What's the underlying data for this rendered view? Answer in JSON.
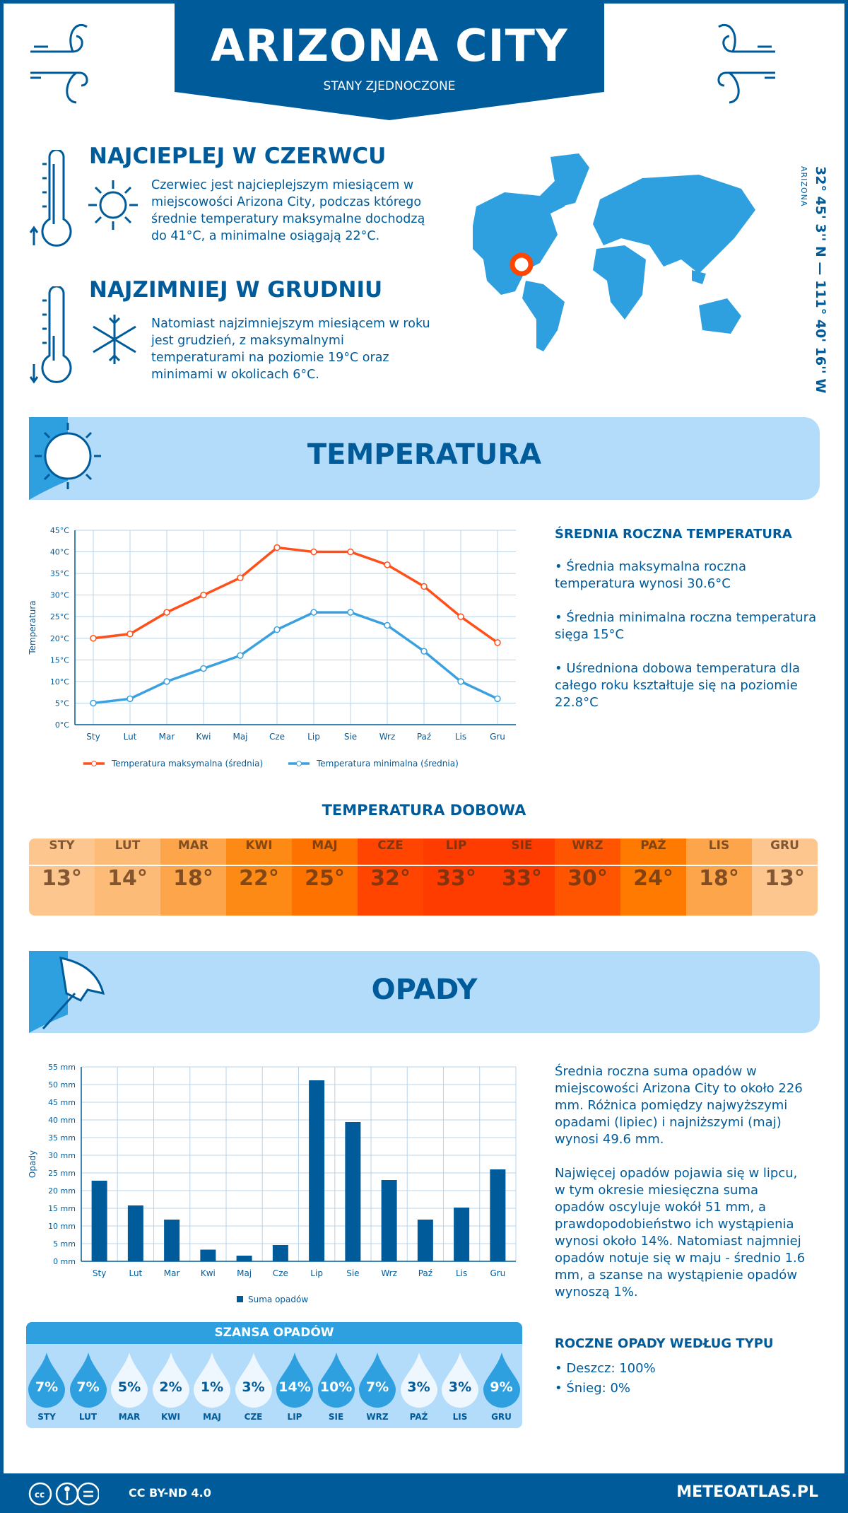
{
  "header": {
    "title": "ARIZONA CITY",
    "subtitle": "STANY ZJEDNOCZONE"
  },
  "hottest": {
    "title": "NAJCIEPLEJ W CZERWCU",
    "text": "Czerwiec jest najcieplejszym miesiącem w miejscowości Arizona City, podczas którego średnie temperatury maksymalne dochodzą do 41°C, a minimalne osiągają 22°C."
  },
  "coldest": {
    "title": "NAJZIMNIEJ W GRUDNIU",
    "text": "Natomiast najzimniejszym miesiącem w roku jest grudzień, z maksymalnymi temperaturami na poziomie 19°C oraz minimami w okolicach 6°C."
  },
  "location": {
    "coords": "32° 45' 3'' N — 111° 40' 16'' W",
    "region": "ARIZONA"
  },
  "temperature": {
    "title": "TEMPERATURA",
    "summary_title": "ŚREDNIA ROCZNA TEMPERATURA",
    "bullets": [
      "• Średnia maksymalna roczna temperatura wynosi 30.6°C",
      "• Średnia minimalna roczna temperatura sięga 15°C",
      "• Uśredniona dobowa temperatura dla całego roku kształtuje się na poziomie 22.8°C"
    ],
    "daily_title": "TEMPERATURA DOBOWA",
    "daily": [
      {
        "m": "STY",
        "v": "13°",
        "c": "#fdc68e"
      },
      {
        "m": "LUT",
        "v": "14°",
        "c": "#fdbb78"
      },
      {
        "m": "MAR",
        "v": "18°",
        "c": "#fca54a"
      },
      {
        "m": "KWI",
        "v": "22°",
        "c": "#fd8a14"
      },
      {
        "m": "MAJ",
        "v": "25°",
        "c": "#fe7200"
      },
      {
        "m": "CZE",
        "v": "32°",
        "c": "#ff4500"
      },
      {
        "m": "LIP",
        "v": "33°",
        "c": "#ff3c00"
      },
      {
        "m": "SIE",
        "v": "33°",
        "c": "#ff3c00"
      },
      {
        "m": "WRZ",
        "v": "30°",
        "c": "#ff5500"
      },
      {
        "m": "PAŹ",
        "v": "24°",
        "c": "#fe7a00"
      },
      {
        "m": "LIS",
        "v": "18°",
        "c": "#fca54a"
      },
      {
        "m": "GRU",
        "v": "13°",
        "c": "#fdc68e"
      }
    ]
  },
  "precipitation": {
    "title": "OPADY",
    "text1": "Średnia roczna suma opadów w miejscowości Arizona City to około 226 mm. Różnica pomiędzy najwyższymi opadami (lipiec) i najniższymi (maj) wynosi 49.6 mm.",
    "text2": "Najwięcej opadów pojawia się w lipcu, w tym okresie miesięczna suma opadów oscyluje wokół 51 mm, a prawdopodobieństwo ich wystąpienia wynosi około 14%. Natomiast najmniej opadów notuje się w maju - średnio 1.6 mm, a szanse na wystąpienie opadów wynoszą 1%.",
    "chance_title": "SZANSA OPADÓW",
    "chance": [
      {
        "m": "STY",
        "v": "7%"
      },
      {
        "m": "LUT",
        "v": "7%"
      },
      {
        "m": "MAR",
        "v": "5%"
      },
      {
        "m": "KWI",
        "v": "2%"
      },
      {
        "m": "MAJ",
        "v": "1%"
      },
      {
        "m": "CZE",
        "v": "3%"
      },
      {
        "m": "LIP",
        "v": "14%"
      },
      {
        "m": "SIE",
        "v": "10%"
      },
      {
        "m": "WRZ",
        "v": "7%"
      },
      {
        "m": "PAŹ",
        "v": "3%"
      },
      {
        "m": "LIS",
        "v": "3%"
      },
      {
        "m": "GRU",
        "v": "9%"
      }
    ],
    "type_title": "ROCZNE OPADY WEDŁUG TYPU",
    "types": [
      "• Deszcz: 100%",
      "• Śnieg: 0%"
    ]
  },
  "colors": {
    "dark_blue": "#005b9a",
    "light_blue": "#2e9fdf",
    "pale_blue": "#b3dcfa",
    "max_line": "#ff4f1a",
    "min_line": "#3aa0df",
    "marker": "#ff4500"
  },
  "chart_data": [
    {
      "type": "line",
      "categories": [
        "Sty",
        "Lut",
        "Mar",
        "Kwi",
        "Maj",
        "Cze",
        "Lip",
        "Sie",
        "Wrz",
        "Paź",
        "Lis",
        "Gru"
      ],
      "ylabel": "Temperatura",
      "ylim": [
        0,
        45
      ],
      "yticks": [
        "0°C",
        "5°C",
        "10°C",
        "15°C",
        "20°C",
        "25°C",
        "30°C",
        "35°C",
        "40°C",
        "45°C"
      ],
      "grid": true,
      "legend": "bottom",
      "series": [
        {
          "name": "Temperatura maksymalna (średnia)",
          "values": [
            20,
            21,
            26,
            30,
            34,
            41,
            40,
            40,
            37,
            32,
            25,
            19
          ]
        },
        {
          "name": "Temperatura minimalna (średnia)",
          "values": [
            5,
            6,
            10,
            13,
            16,
            22,
            26,
            26,
            23,
            17,
            10,
            6
          ]
        }
      ]
    },
    {
      "type": "bar",
      "categories": [
        "Sty",
        "Lut",
        "Mar",
        "Kwi",
        "Maj",
        "Cze",
        "Lip",
        "Sie",
        "Wrz",
        "Paź",
        "Lis",
        "Gru"
      ],
      "ylabel": "Opady",
      "ylim": [
        0,
        55
      ],
      "yticks": [
        "0 mm",
        "5 mm",
        "10 mm",
        "15 mm",
        "20 mm",
        "25 mm",
        "30 mm",
        "35 mm",
        "40 mm",
        "45 mm",
        "50 mm",
        "55 mm"
      ],
      "grid": true,
      "legend": "bottom",
      "series": [
        {
          "name": "Suma opadów",
          "values": [
            22.8,
            15.8,
            11.8,
            3.3,
            1.6,
            4.6,
            51.2,
            39.4,
            23,
            11.8,
            15.2,
            26
          ]
        }
      ]
    }
  ],
  "footer": {
    "license": "CC BY-ND 4.0",
    "brand": "METEOATLAS.PL"
  }
}
